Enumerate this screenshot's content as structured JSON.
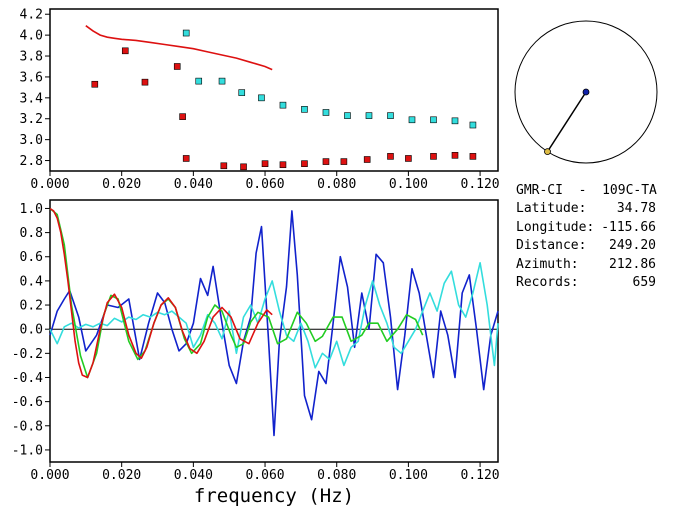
{
  "colors": {
    "red": "#dd1111",
    "cyan": "#33dddd",
    "blue": "#1122cc",
    "green": "#22cc22",
    "black": "#000000",
    "station_dot": "#1122aa",
    "event_dot": "#ddbb44"
  },
  "chart_data": [
    {
      "type": "scatter",
      "panel": "top",
      "xlim": [
        0.0,
        0.125
      ],
      "ylim": [
        2.7,
        4.25
      ],
      "x_ticks": [
        "0.000",
        "0.020",
        "0.040",
        "0.060",
        "0.080",
        "0.100",
        "0.120"
      ],
      "y_ticks": [
        "4.2",
        "4.0",
        "3.8",
        "3.6",
        "3.4",
        "3.2",
        "3.0",
        "2.8"
      ],
      "series": [
        {
          "kind": "line",
          "color": "red",
          "x": [
            0.01,
            0.012,
            0.014,
            0.016,
            0.018,
            0.02,
            0.024,
            0.028,
            0.032,
            0.036,
            0.04,
            0.044,
            0.048,
            0.052,
            0.056,
            0.06,
            0.062
          ],
          "y": [
            4.09,
            4.04,
            4.0,
            3.98,
            3.97,
            3.96,
            3.95,
            3.93,
            3.91,
            3.89,
            3.87,
            3.84,
            3.81,
            3.78,
            3.74,
            3.7,
            3.67
          ]
        },
        {
          "kind": "markers",
          "color": "red",
          "x": [
            0.0125,
            0.021,
            0.0265,
            0.0355,
            0.037,
            0.038,
            0.0485,
            0.054,
            0.06,
            0.065,
            0.071,
            0.077,
            0.082,
            0.0885,
            0.095,
            0.1,
            0.107,
            0.113,
            0.118
          ],
          "y": [
            3.53,
            3.85,
            3.55,
            3.7,
            3.22,
            2.82,
            2.75,
            2.74,
            2.77,
            2.76,
            2.77,
            2.79,
            2.79,
            2.81,
            2.84,
            2.82,
            2.84,
            2.85,
            2.84
          ]
        },
        {
          "kind": "markers",
          "color": "cyan",
          "x": [
            0.038,
            0.0415,
            0.048,
            0.0535,
            0.059,
            0.065,
            0.071,
            0.077,
            0.083,
            0.089,
            0.095,
            0.101,
            0.107,
            0.113,
            0.118
          ],
          "y": [
            4.02,
            3.56,
            3.56,
            3.45,
            3.4,
            3.33,
            3.29,
            3.26,
            3.23,
            3.23,
            3.23,
            3.19,
            3.19,
            3.18,
            3.14
          ]
        }
      ]
    },
    {
      "type": "line",
      "panel": "bottom",
      "xlim": [
        0.0,
        0.125
      ],
      "ylim": [
        -1.1,
        1.07
      ],
      "xlabel": "frequency (Hz)",
      "x_ticks": [
        "0.000",
        "0.020",
        "0.040",
        "0.060",
        "0.080",
        "0.100",
        "0.120"
      ],
      "y_ticks": [
        "1.0",
        "0.8",
        "0.6",
        "0.4",
        "0.2",
        "0.0",
        "-0.2",
        "-0.4",
        "-0.6",
        "-0.8",
        "-1.0"
      ],
      "series": [
        {
          "color": "blue",
          "x": [
            0.0,
            0.002,
            0.004,
            0.0055,
            0.008,
            0.01,
            0.013,
            0.016,
            0.019,
            0.022,
            0.025,
            0.0275,
            0.03,
            0.032,
            0.034,
            0.036,
            0.038,
            0.04,
            0.042,
            0.044,
            0.0455,
            0.048,
            0.05,
            0.052,
            0.054,
            0.056,
            0.0575,
            0.059,
            0.061,
            0.0625,
            0.064,
            0.066,
            0.0675,
            0.069,
            0.071,
            0.073,
            0.075,
            0.077,
            0.079,
            0.081,
            0.083,
            0.085,
            0.087,
            0.089,
            0.091,
            0.093,
            0.095,
            0.097,
            0.099,
            0.101,
            0.103,
            0.105,
            0.107,
            0.109,
            0.111,
            0.113,
            0.115,
            0.117,
            0.119,
            0.121,
            0.123,
            0.125
          ],
          "y": [
            -0.05,
            0.15,
            0.25,
            0.32,
            0.1,
            -0.18,
            -0.05,
            0.2,
            0.18,
            0.25,
            -0.25,
            0.05,
            0.3,
            0.22,
            0.0,
            -0.18,
            -0.12,
            0.05,
            0.42,
            0.28,
            0.52,
            0.05,
            -0.3,
            -0.45,
            -0.1,
            0.1,
            0.63,
            0.85,
            -0.1,
            -0.88,
            -0.1,
            0.35,
            0.98,
            0.45,
            -0.55,
            -0.75,
            -0.35,
            -0.45,
            0.05,
            0.6,
            0.35,
            -0.15,
            0.3,
            0.0,
            0.62,
            0.55,
            0.1,
            -0.5,
            -0.05,
            0.5,
            0.3,
            -0.05,
            -0.4,
            0.15,
            -0.05,
            -0.4,
            0.3,
            0.45,
            0.0,
            -0.5,
            -0.05,
            0.15
          ]
        },
        {
          "color": "cyan",
          "x": [
            0.0,
            0.002,
            0.004,
            0.006,
            0.008,
            0.01,
            0.012,
            0.014,
            0.016,
            0.018,
            0.02,
            0.022,
            0.024,
            0.026,
            0.028,
            0.03,
            0.032,
            0.034,
            0.036,
            0.038,
            0.04,
            0.042,
            0.044,
            0.046,
            0.048,
            0.05,
            0.052,
            0.054,
            0.056,
            0.058,
            0.06,
            0.062,
            0.064,
            0.066,
            0.068,
            0.07,
            0.072,
            0.074,
            0.076,
            0.078,
            0.08,
            0.082,
            0.084,
            0.086,
            0.088,
            0.09,
            0.092,
            0.094,
            0.096,
            0.098,
            0.1,
            0.102,
            0.104,
            0.106,
            0.108,
            0.11,
            0.112,
            0.114,
            0.116,
            0.118,
            0.12,
            0.122,
            0.124,
            0.125
          ],
          "y": [
            0.0,
            -0.12,
            0.02,
            0.05,
            0.01,
            0.04,
            0.02,
            0.05,
            0.03,
            0.09,
            0.06,
            0.1,
            0.08,
            0.12,
            0.1,
            0.14,
            0.12,
            0.15,
            0.1,
            0.05,
            -0.15,
            -0.05,
            0.12,
            0.05,
            -0.08,
            0.15,
            -0.2,
            0.1,
            0.2,
            0.05,
            0.25,
            0.4,
            0.15,
            -0.05,
            -0.1,
            0.05,
            -0.1,
            -0.32,
            -0.2,
            -0.25,
            -0.1,
            -0.3,
            -0.15,
            -0.1,
            0.2,
            0.4,
            0.2,
            0.05,
            -0.15,
            -0.2,
            -0.1,
            0.0,
            0.15,
            0.3,
            0.15,
            0.38,
            0.48,
            0.2,
            0.1,
            0.3,
            0.55,
            0.2,
            -0.3,
            0.05
          ]
        },
        {
          "color": "green",
          "x": [
            0.0,
            0.002,
            0.004,
            0.006,
            0.0085,
            0.0105,
            0.013,
            0.015,
            0.017,
            0.019,
            0.022,
            0.0245,
            0.0265,
            0.029,
            0.031,
            0.033,
            0.035,
            0.0375,
            0.0395,
            0.042,
            0.044,
            0.046,
            0.048,
            0.0505,
            0.052,
            0.054,
            0.056,
            0.058,
            0.061,
            0.0635,
            0.066,
            0.069,
            0.0715,
            0.074,
            0.076,
            0.079,
            0.0815,
            0.084,
            0.087,
            0.089,
            0.0915,
            0.094,
            0.097,
            0.0995,
            0.102,
            0.104
          ],
          "y": [
            1.0,
            0.95,
            0.7,
            0.2,
            -0.22,
            -0.4,
            -0.2,
            0.12,
            0.28,
            0.25,
            -0.1,
            -0.25,
            -0.18,
            0.05,
            0.2,
            0.25,
            0.18,
            -0.08,
            -0.2,
            -0.12,
            0.1,
            0.2,
            0.15,
            -0.05,
            -0.15,
            -0.12,
            0.06,
            0.14,
            0.1,
            -0.12,
            -0.08,
            0.14,
            0.05,
            -0.1,
            -0.06,
            0.1,
            0.1,
            -0.1,
            -0.05,
            0.05,
            0.05,
            -0.1,
            0.0,
            0.12,
            0.08,
            -0.05
          ]
        },
        {
          "color": "red",
          "x": [
            0.0,
            0.001,
            0.002,
            0.003,
            0.004,
            0.005,
            0.006,
            0.007,
            0.008,
            0.009,
            0.0105,
            0.012,
            0.014,
            0.016,
            0.018,
            0.02,
            0.022,
            0.024,
            0.0255,
            0.027,
            0.029,
            0.031,
            0.033,
            0.035,
            0.037,
            0.039,
            0.041,
            0.043,
            0.0455,
            0.048,
            0.0505,
            0.053,
            0.0555,
            0.058,
            0.0605,
            0.062
          ],
          "y": [
            1.0,
            0.98,
            0.92,
            0.8,
            0.62,
            0.4,
            0.15,
            -0.1,
            -0.28,
            -0.38,
            -0.4,
            -0.28,
            0.0,
            0.22,
            0.29,
            0.18,
            -0.05,
            -0.2,
            -0.24,
            -0.15,
            0.05,
            0.2,
            0.26,
            0.18,
            -0.02,
            -0.16,
            -0.2,
            -0.1,
            0.1,
            0.18,
            0.1,
            -0.08,
            -0.12,
            0.05,
            0.16,
            0.12
          ]
        }
      ]
    }
  ],
  "station": {
    "name": "GMR-CI  -  109C-TA",
    "fields": [
      {
        "key": "Latitude:",
        "value": "34.78"
      },
      {
        "key": "Longitude:",
        "value": "-115.66"
      },
      {
        "key": "Distance:",
        "value": "249.20"
      },
      {
        "key": "Azimuth:",
        "value": "212.86"
      },
      {
        "key": "Records:",
        "value": "659"
      }
    ]
  },
  "azimuth_deg": 212.86
}
